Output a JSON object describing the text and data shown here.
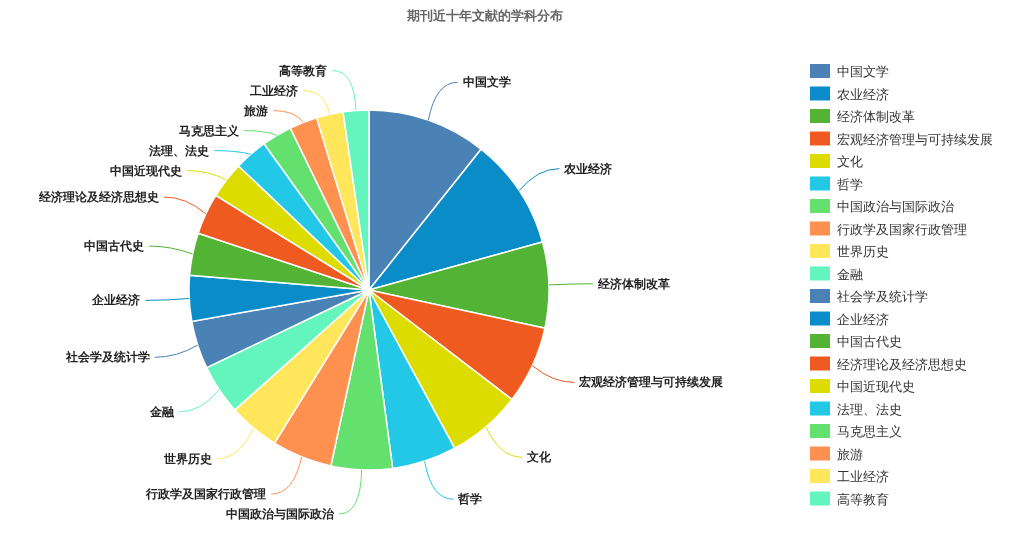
{
  "chart_data": {
    "type": "pie",
    "title": "期刊近十年文献的学科分布",
    "categories": [
      "中国文学",
      "农业经济",
      "经济体制改革",
      "宏观经济管理与可持续发展",
      "文化",
      "哲学",
      "中国政治与国际政治",
      "行政学及国家行政管理",
      "世界历史",
      "金融",
      "社会学及统计学",
      "企业经济",
      "中国古代史",
      "经济理论及经济思想史",
      "中国近现代史",
      "法理、法史",
      "马克思主义",
      "旅游",
      "工业经济",
      "高等教育"
    ],
    "values": [
      10.7,
      10.0,
      7.7,
      7.0,
      6.7,
      5.8,
      5.5,
      5.4,
      4.6,
      4.5,
      4.3,
      4.1,
      3.8,
      3.7,
      3.3,
      3.0,
      2.7,
      2.5,
      2.4,
      2.3
    ],
    "colors": [
      "#4a82b5",
      "#0a8cc8",
      "#52b334",
      "#ee5a1f",
      "#dcdc00",
      "#22c8e6",
      "#64e06e",
      "#ff9150",
      "#ffe65a",
      "#64f5be",
      "#4a82b5",
      "#0a8cc8",
      "#52b334",
      "#ee5a1f",
      "#dcdc00",
      "#22c8e6",
      "#64e06e",
      "#ff9150",
      "#ffe65a",
      "#64f5be"
    ],
    "legend": "right"
  }
}
